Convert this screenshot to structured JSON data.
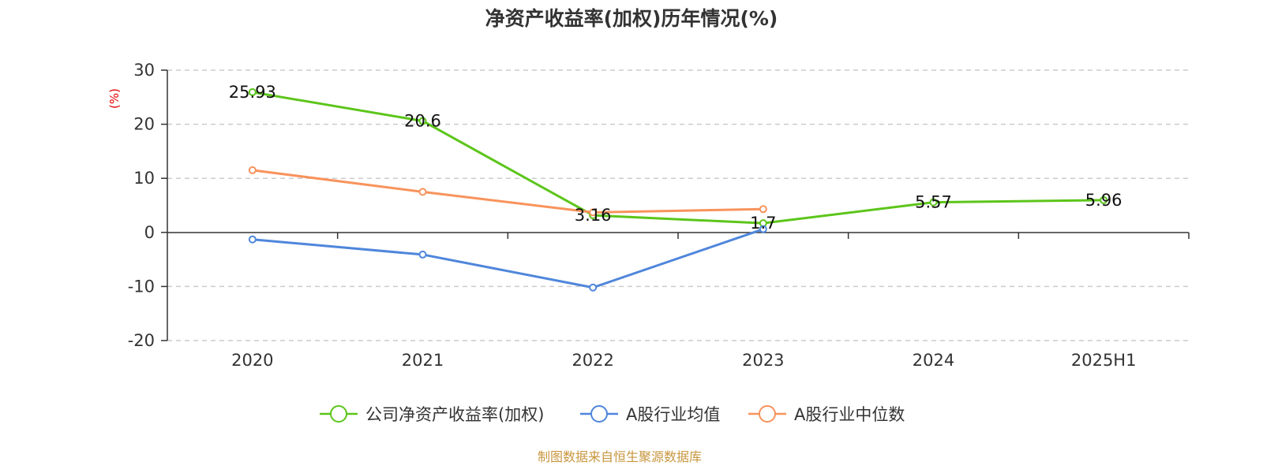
{
  "chart_data": {
    "type": "line",
    "title": "净资产收益率(加权)历年情况(%)",
    "ylabel": "(%)",
    "xlabel": "",
    "categories": [
      "2020",
      "2021",
      "2022",
      "2023",
      "2024",
      "2025H1"
    ],
    "ylim": [
      -20,
      30
    ],
    "yticks": [
      30,
      20,
      10,
      0,
      -10,
      -20
    ],
    "grid": true,
    "legend_position": "bottom",
    "series": [
      {
        "name": "公司净资产收益率(加权)",
        "color": "#5cc51a",
        "values": [
          25.93,
          20.6,
          3.16,
          1.7,
          5.57,
          5.96
        ],
        "labels": [
          "25.93",
          "20.6",
          "3.16",
          "1.7",
          "5.57",
          "5.96"
        ]
      },
      {
        "name": "A股行业均值",
        "color": "#4f86db",
        "values": [
          -1.3,
          -4.1,
          -10.2,
          0.6,
          null,
          null
        ]
      },
      {
        "name": "A股行业中位数",
        "color": "#f8935c",
        "values": [
          11.5,
          7.5,
          3.7,
          4.3,
          null,
          null
        ]
      }
    ]
  },
  "footer": {
    "source": "制图数据来自恒生聚源数据库"
  }
}
